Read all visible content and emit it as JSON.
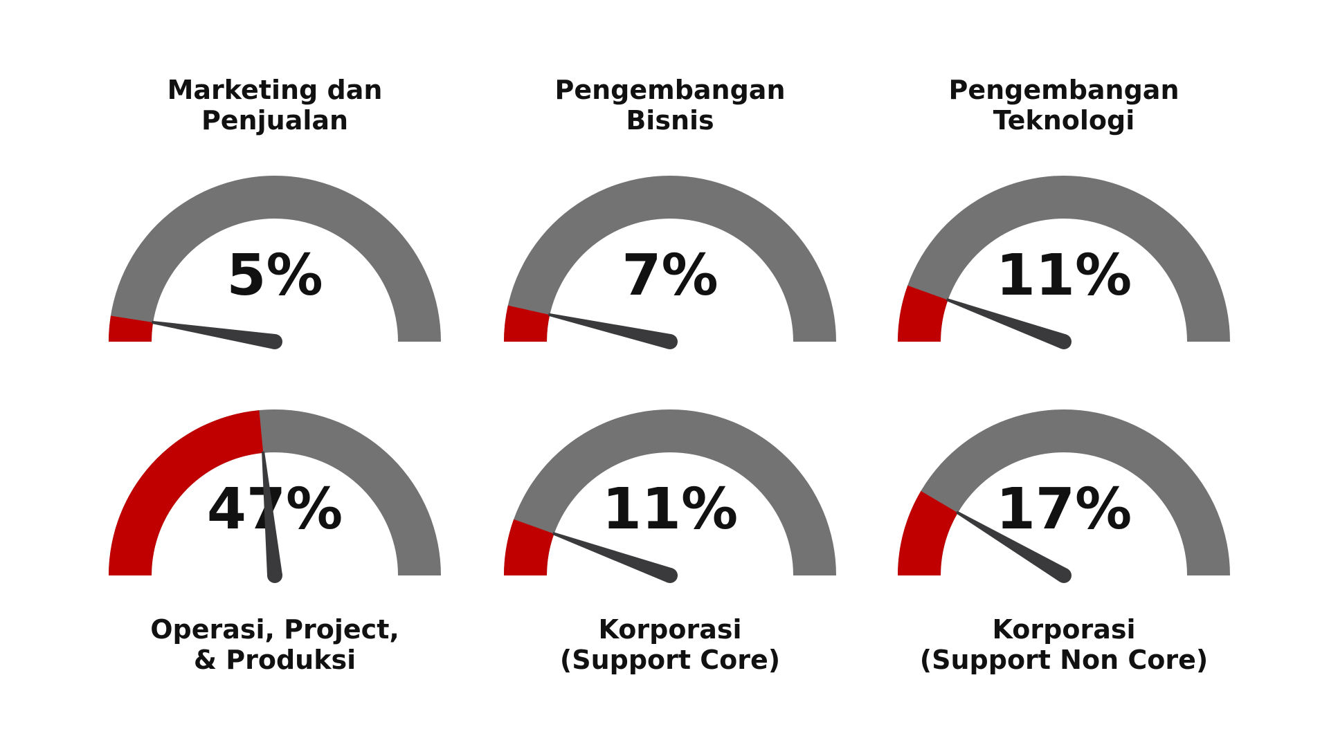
{
  "colors": {
    "background": "#ffffff",
    "track": "#737373",
    "fill": "#c00000",
    "needle": "#3a3a3c",
    "text": "#111111"
  },
  "chart_data": {
    "type": "gauge",
    "range": [
      0,
      100
    ],
    "gauges": [
      {
        "label": "Marketing dan\nPenjualan",
        "value": 5,
        "display": "5%"
      },
      {
        "label": "Pengembangan\nBisnis",
        "value": 7,
        "display": "7%"
      },
      {
        "label": "Pengembangan\nTeknologi",
        "value": 11,
        "display": "11%"
      },
      {
        "label": "Operasi, Project,\n& Produksi",
        "value": 47,
        "display": "47%"
      },
      {
        "label": "Korporasi\n(Support Core)",
        "value": 11,
        "display": "11%"
      },
      {
        "label": "Korporasi\n(Support Non Core)",
        "value": 17,
        "display": "17%"
      }
    ]
  }
}
